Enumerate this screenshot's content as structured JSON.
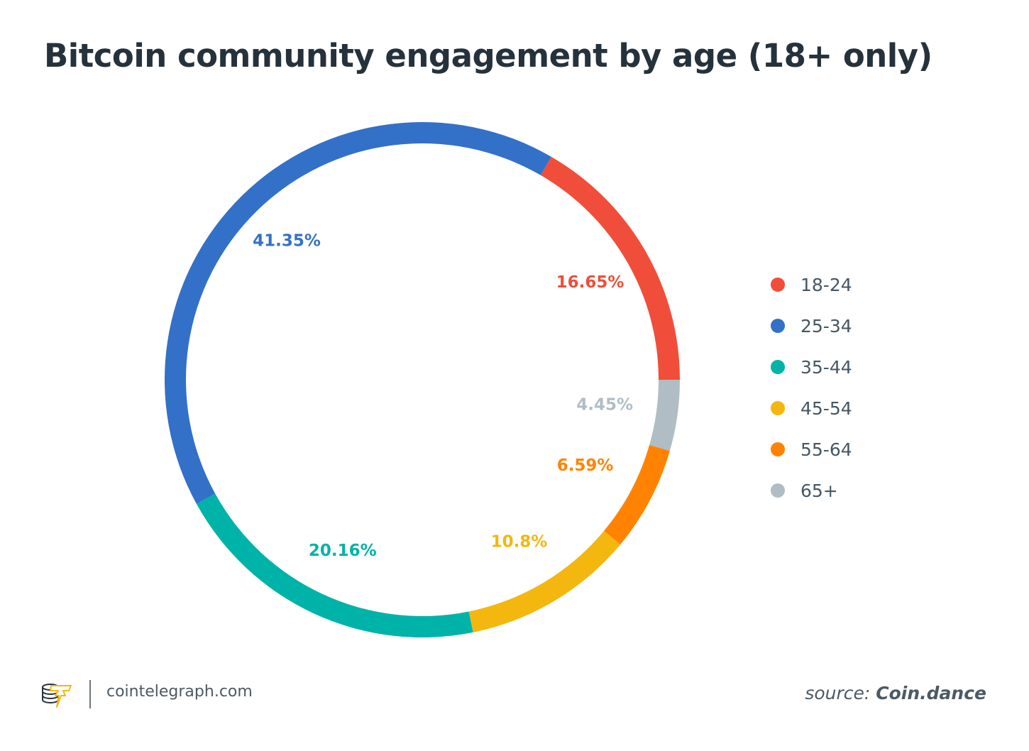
{
  "chart_data": {
    "type": "pie",
    "variant": "donut",
    "title": "Bitcoin community engagement by age (18+ only)",
    "start": "right (3 o'clock), clockwise",
    "slices": [
      {
        "label": "65+",
        "value": 4.45,
        "display": "4.45%",
        "color": "#b0bdc4"
      },
      {
        "label": "55-64",
        "value": 6.59,
        "display": "6.59%",
        "color": "#ff8300"
      },
      {
        "label": "45-54",
        "value": 10.8,
        "display": "10.8%",
        "color": "#f4b70f"
      },
      {
        "label": "35-44",
        "value": 20.16,
        "display": "20.16%",
        "color": "#00b3a8"
      },
      {
        "label": "25-34",
        "value": 41.35,
        "display": "41.35%",
        "color": "#3370c8"
      },
      {
        "label": "18-24",
        "value": 16.65,
        "display": "16.65%",
        "color": "#f04e3a"
      }
    ],
    "legend": {
      "placement": "right",
      "entries": [
        {
          "label": "18-24",
          "color": "#f04e3a"
        },
        {
          "label": "25-34",
          "color": "#3370c8"
        },
        {
          "label": "35-44",
          "color": "#00b3a8"
        },
        {
          "label": "45-54",
          "color": "#f4b70f"
        },
        {
          "label": "55-64",
          "color": "#ff8300"
        },
        {
          "label": "65+",
          "color": "#b0bdc4"
        }
      ]
    }
  },
  "footer": {
    "site": "cointelegraph.com",
    "source_prefix": "source:",
    "source_name": "Coin.dance",
    "logo_icon": "cointelegraph-coins-lightning-icon"
  },
  "colors": {
    "title": "#26323b",
    "text": "#4d5a64",
    "logo_accent": "#f4b70f"
  }
}
